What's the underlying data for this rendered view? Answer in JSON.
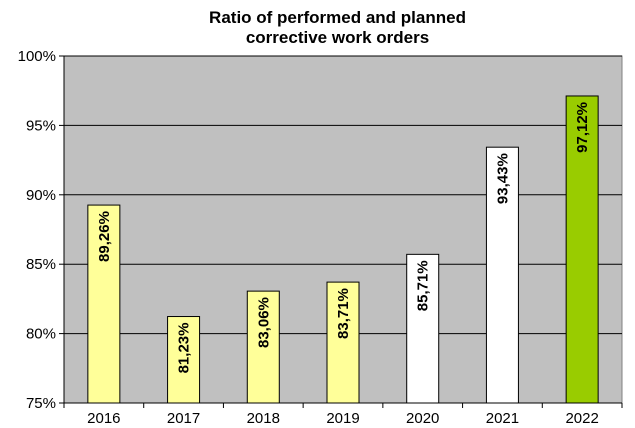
{
  "chart_data": {
    "type": "bar",
    "title_lines": [
      "Ratio of performed and planned",
      "corrective work orders"
    ],
    "categories": [
      "2016",
      "2017",
      "2018",
      "2019",
      "2020",
      "2021",
      "2022"
    ],
    "values": [
      89.26,
      81.23,
      83.06,
      83.71,
      85.71,
      93.43,
      97.12
    ],
    "data_labels": [
      "89,26%",
      "81,23%",
      "83,06%",
      "83,71%",
      "85,71%",
      "93,43%",
      "97,12%"
    ],
    "bar_colors": [
      "#ffff99",
      "#ffff99",
      "#ffff99",
      "#ffff99",
      "#ffffff",
      "#ffffff",
      "#99cc00"
    ],
    "ylim": [
      75,
      100
    ],
    "yticks": [
      75,
      80,
      85,
      90,
      95,
      100
    ],
    "ytick_labels": [
      "75%",
      "80%",
      "85%",
      "90%",
      "95%",
      "100%"
    ],
    "grid": true,
    "plot_background": "#c0c0c0",
    "xlabel": "",
    "ylabel": ""
  }
}
